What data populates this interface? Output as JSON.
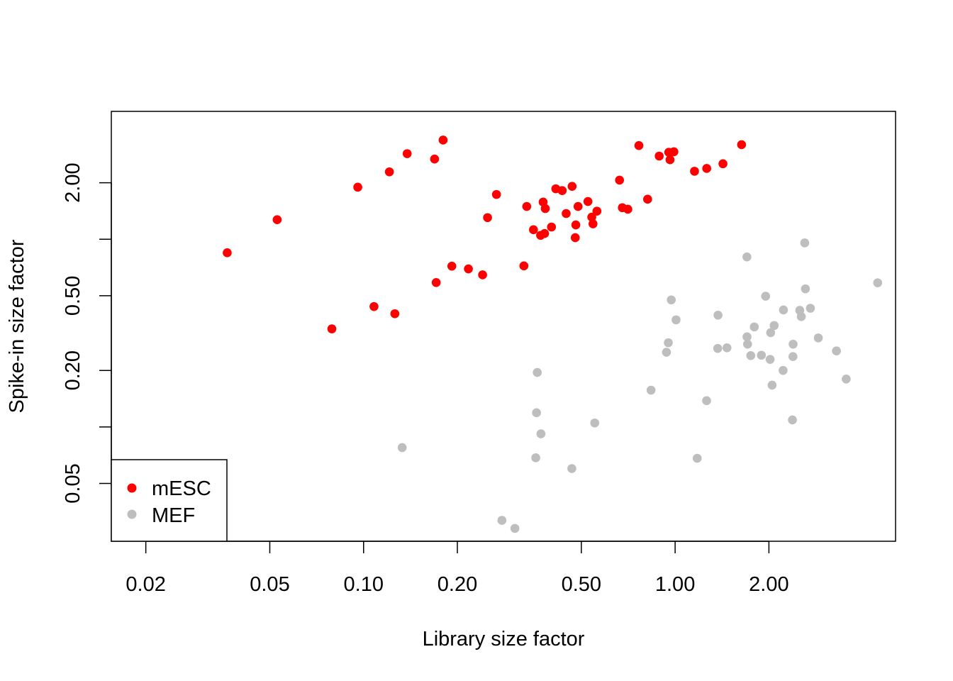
{
  "chart_data": {
    "type": "scatter",
    "xlabel": "Library size factor",
    "ylabel": "Spike-in size factor",
    "x_scale": "log",
    "y_scale": "log",
    "xlim": [
      0.0155,
      5.1
    ],
    "ylim": [
      0.0246,
      4.8
    ],
    "x_ticks": [
      0.02,
      0.05,
      0.1,
      0.2,
      0.5,
      1.0,
      2.0
    ],
    "x_tick_labels": [
      "0.02",
      "0.05",
      "0.10",
      "0.20",
      "0.50",
      "1.00",
      "2.00"
    ],
    "y_ticks": [
      0.05,
      0.1,
      0.2,
      0.5,
      1.0,
      2.0
    ],
    "y_tick_labels": [
      "0.05",
      "",
      "0.20",
      "0.50",
      "",
      "2.00"
    ],
    "grid": false,
    "legend_position": "bottom-left",
    "series": [
      {
        "name": "mESC",
        "color": "#ff0000",
        "points": [
          [
            0.0365,
            0.847
          ],
          [
            0.0528,
            1.271
          ],
          [
            0.0791,
            0.333
          ],
          [
            0.0958,
            1.894
          ],
          [
            0.108,
            0.438
          ],
          [
            0.121,
            2.286
          ],
          [
            0.126,
            0.401
          ],
          [
            0.138,
            2.857
          ],
          [
            0.169,
            2.674
          ],
          [
            0.171,
            0.588
          ],
          [
            0.18,
            3.375
          ],
          [
            0.192,
            0.719
          ],
          [
            0.217,
            0.695
          ],
          [
            0.241,
            0.646
          ],
          [
            0.25,
            1.304
          ],
          [
            0.267,
            1.732
          ],
          [
            0.327,
            0.721
          ],
          [
            0.334,
            1.495
          ],
          [
            0.351,
            1.124
          ],
          [
            0.37,
            1.049
          ],
          [
            0.377,
            1.578
          ],
          [
            0.381,
            1.073
          ],
          [
            0.383,
            1.457
          ],
          [
            0.401,
            1.162
          ],
          [
            0.414,
            1.857
          ],
          [
            0.434,
            1.816
          ],
          [
            0.447,
            1.371
          ],
          [
            0.467,
            1.914
          ],
          [
            0.478,
            1.019
          ],
          [
            0.48,
            1.192
          ],
          [
            0.488,
            1.495
          ],
          [
            0.525,
            1.589
          ],
          [
            0.54,
            1.312
          ],
          [
            0.545,
            1.208
          ],
          [
            0.561,
            1.411
          ],
          [
            0.663,
            2.064
          ],
          [
            0.677,
            1.473
          ],
          [
            0.705,
            1.445
          ],
          [
            0.765,
            3.155
          ],
          [
            0.816,
            1.634
          ],
          [
            0.889,
            2.774
          ],
          [
            0.954,
            2.906
          ],
          [
            0.963,
            2.651
          ],
          [
            0.991,
            2.925
          ],
          [
            1.154,
            2.303
          ],
          [
            1.263,
            2.383
          ],
          [
            1.424,
            2.524
          ],
          [
            1.634,
            3.191
          ]
        ]
      },
      {
        "name": "MEF",
        "color": "#bebebe",
        "points": [
          [
            0.133,
            0.0776
          ],
          [
            0.278,
            0.0318
          ],
          [
            0.306,
            0.0288
          ],
          [
            0.357,
            0.0685
          ],
          [
            0.359,
            0.119
          ],
          [
            0.361,
            0.195
          ],
          [
            0.371,
            0.0919
          ],
          [
            0.466,
            0.06
          ],
          [
            0.552,
            0.105
          ],
          [
            0.837,
            0.157
          ],
          [
            0.938,
            0.25
          ],
          [
            0.951,
            0.281
          ],
          [
            0.972,
            0.475
          ],
          [
            1.007,
            0.372
          ],
          [
            1.177,
            0.0681
          ],
          [
            1.262,
            0.138
          ],
          [
            1.37,
            0.262
          ],
          [
            1.373,
            0.394
          ],
          [
            1.467,
            0.264
          ],
          [
            1.7,
            0.805
          ],
          [
            1.701,
            0.302
          ],
          [
            1.708,
            0.276
          ],
          [
            1.749,
            0.24
          ],
          [
            1.795,
            0.341
          ],
          [
            1.892,
            0.241
          ],
          [
            1.952,
            0.497
          ],
          [
            2.018,
            0.229
          ],
          [
            2.026,
            0.318
          ],
          [
            2.048,
            0.167
          ],
          [
            2.079,
            0.347
          ],
          [
            2.221,
            0.2
          ],
          [
            2.227,
            0.42
          ],
          [
            2.38,
            0.109
          ],
          [
            2.389,
            0.237
          ],
          [
            2.392,
            0.276
          ],
          [
            2.512,
            0.418
          ],
          [
            2.541,
            0.387
          ],
          [
            2.606,
            0.956
          ],
          [
            2.62,
            0.544
          ],
          [
            2.718,
            0.429
          ],
          [
            2.881,
            0.298
          ],
          [
            3.295,
            0.254
          ],
          [
            3.541,
            0.18
          ],
          [
            4.468,
            0.586
          ]
        ]
      }
    ]
  }
}
